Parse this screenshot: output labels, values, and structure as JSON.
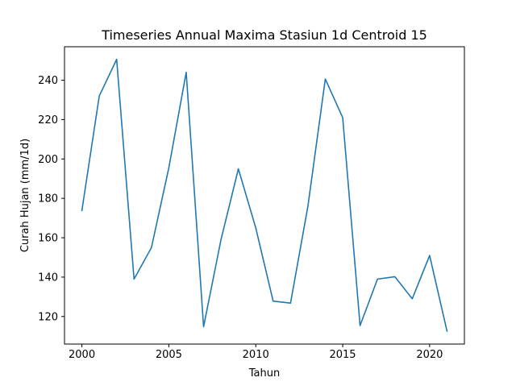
{
  "chart_data": {
    "type": "line",
    "title": "Timeseries Annual Maxima Stasiun 1d Centroid 15",
    "xlabel": "Tahun",
    "ylabel": "Curah Hujan (mm/1d)",
    "xlim": [
      1999.0,
      2022.0
    ],
    "ylim": [
      106.0,
      257.0
    ],
    "xticks": [
      2000,
      2005,
      2010,
      2015,
      2020
    ],
    "yticks": [
      120,
      140,
      160,
      180,
      200,
      220,
      240
    ],
    "grid": false,
    "series": [
      {
        "color": "#1f77b4",
        "x": [
          2000,
          2001,
          2002,
          2003,
          2004,
          2005,
          2006,
          2007,
          2008,
          2009,
          2010,
          2011,
          2012,
          2013,
          2014,
          2015,
          2016,
          2017,
          2018,
          2019,
          2020,
          2021
        ],
        "values": [
          173.8,
          232.0,
          250.6,
          139.0,
          155.0,
          195.5,
          244.0,
          114.8,
          159.0,
          195.0,
          165.0,
          127.8,
          126.8,
          176.0,
          240.6,
          221.0,
          115.4,
          139.0,
          140.2,
          129.0,
          151.0,
          112.6
        ]
      }
    ]
  }
}
